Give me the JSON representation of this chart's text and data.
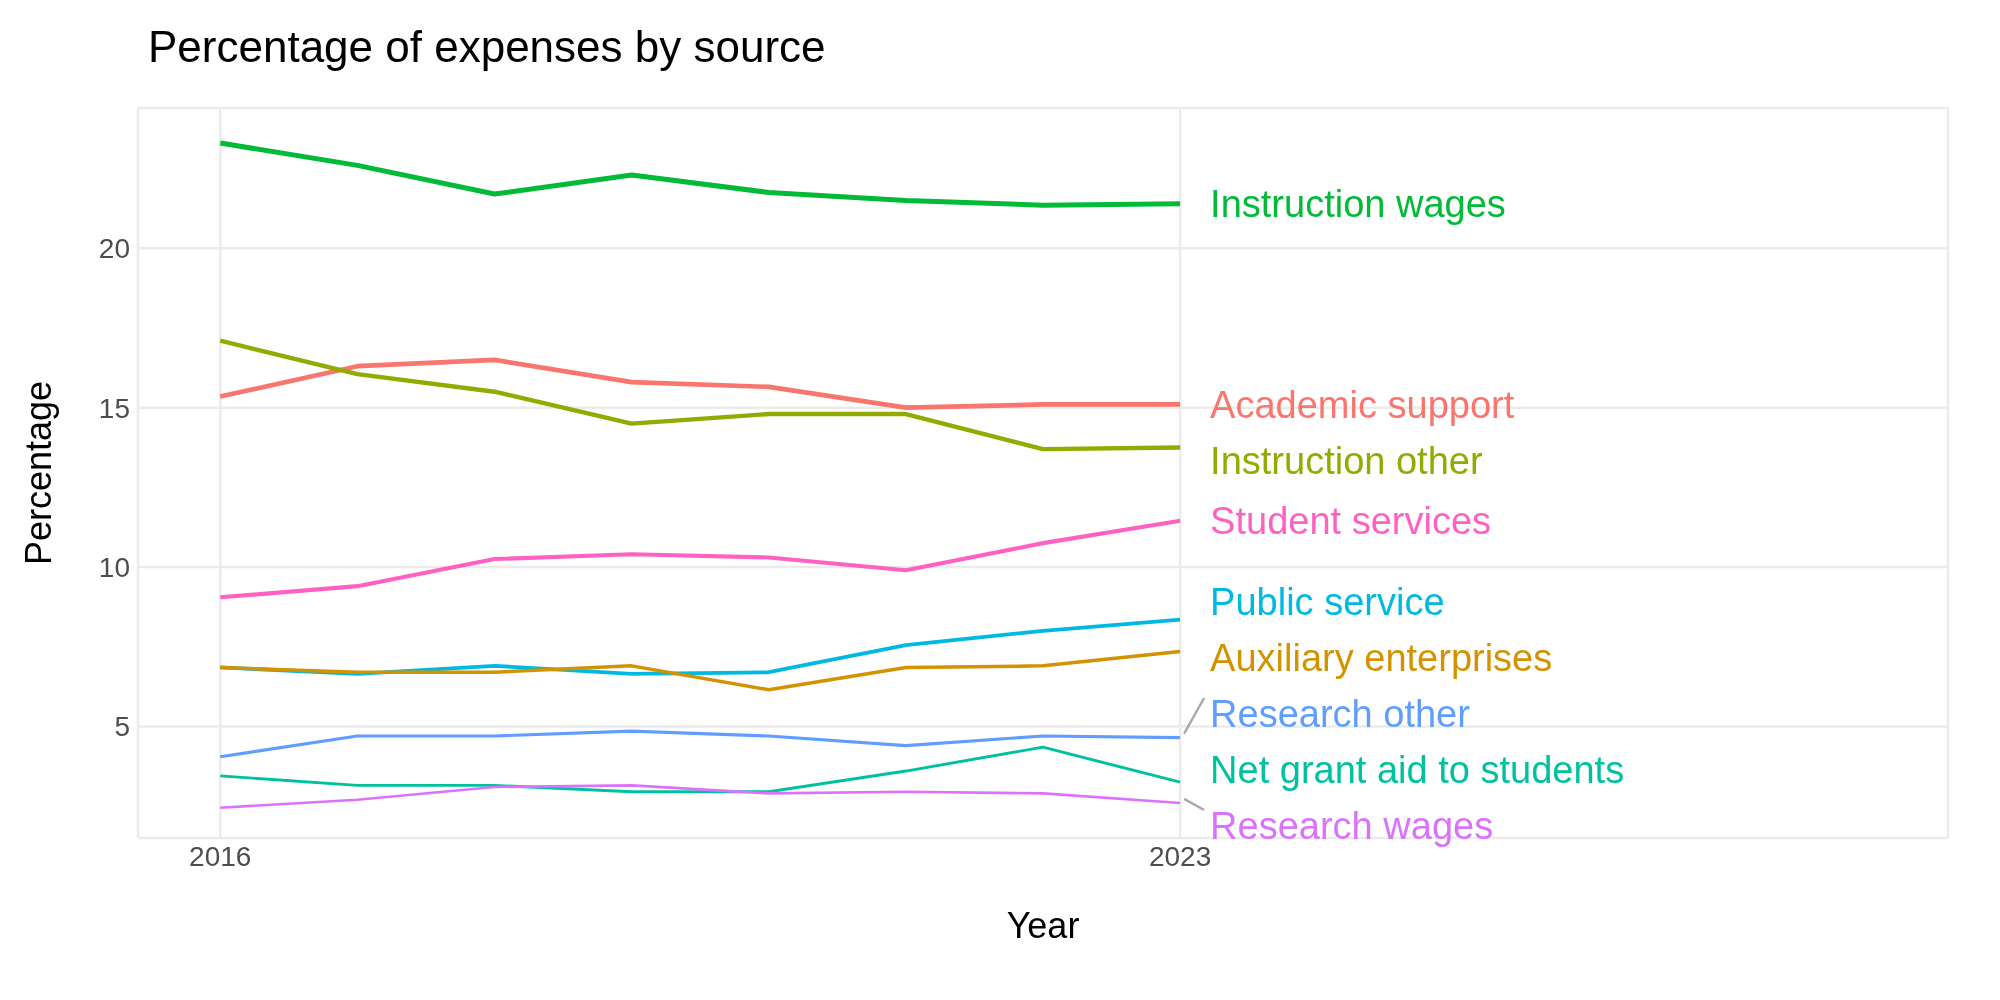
{
  "chart_data": {
    "type": "line",
    "title": "Percentage of expenses by source",
    "xlabel": "Year",
    "ylabel": "Percentage",
    "x": [
      2016,
      2017,
      2018,
      2019,
      2020,
      2021,
      2022,
      2023
    ],
    "xlim": [
      2015.4,
      2028.6
    ],
    "xticks": [
      2016,
      2023
    ],
    "ylim": [
      1.5,
      24.4
    ],
    "yticks": [
      5,
      10,
      15,
      20
    ],
    "grid": true,
    "marker": "none",
    "line_style": "solid",
    "series": [
      {
        "name": "Instruction wages",
        "color": "#00ba38",
        "values": [
          23.3,
          22.6,
          21.7,
          22.3,
          21.75,
          21.5,
          21.35,
          21.4
        ]
      },
      {
        "name": "Academic support",
        "color": "#f8766d",
        "values": [
          15.35,
          16.3,
          16.5,
          15.8,
          15.65,
          15.0,
          15.1,
          15.1
        ]
      },
      {
        "name": "Instruction other",
        "color": "#93aa00",
        "values": [
          17.1,
          16.05,
          15.5,
          14.5,
          14.8,
          14.8,
          13.7,
          13.75
        ]
      },
      {
        "name": "Student services",
        "color": "#ff61c3",
        "values": [
          9.05,
          9.4,
          10.25,
          10.4,
          10.3,
          9.9,
          10.75,
          11.45
        ]
      },
      {
        "name": "Public service",
        "color": "#00b9e3",
        "values": [
          6.85,
          6.65,
          6.9,
          6.65,
          6.7,
          7.55,
          8.0,
          8.35
        ]
      },
      {
        "name": "Auxiliary enterprises",
        "color": "#d39200",
        "values": [
          6.85,
          6.7,
          6.7,
          6.9,
          6.15,
          6.85,
          6.9,
          7.35
        ]
      },
      {
        "name": "Research other",
        "color": "#619cff",
        "values": [
          4.05,
          4.7,
          4.7,
          4.85,
          4.7,
          4.4,
          4.7,
          4.65
        ]
      },
      {
        "name": "Net grant aid to students",
        "color": "#00c19f",
        "values": [
          3.45,
          3.15,
          3.15,
          2.95,
          2.95,
          3.6,
          4.35,
          3.25
        ]
      },
      {
        "name": "Research wages",
        "color": "#db72fb",
        "values": [
          2.45,
          2.7,
          3.1,
          3.15,
          2.9,
          2.95,
          2.9,
          2.6
        ]
      }
    ]
  }
}
